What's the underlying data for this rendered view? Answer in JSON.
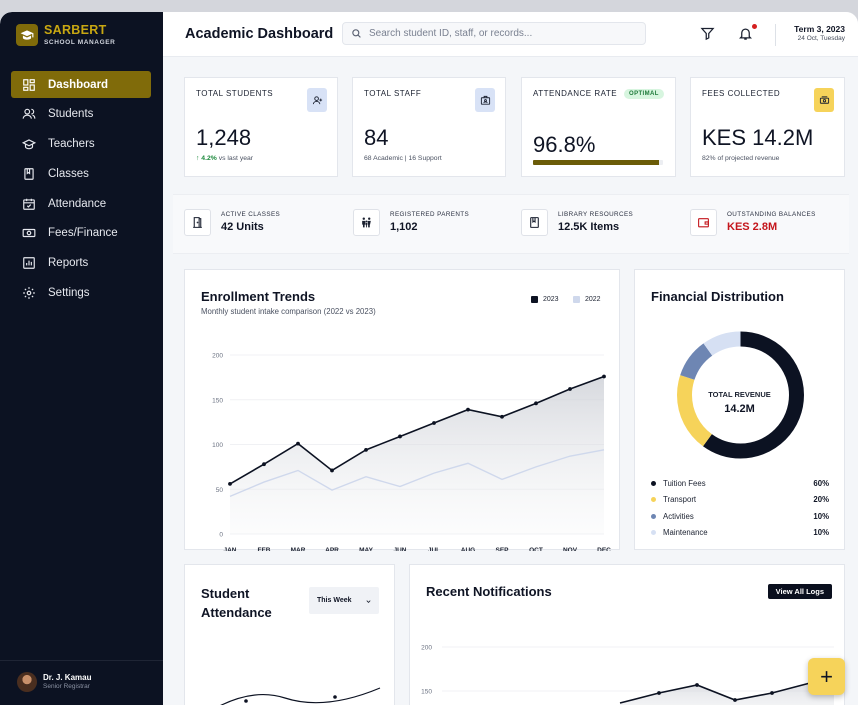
{
  "brand": {
    "name": "SARBERT",
    "subtitle": "SCHOOL MANAGER",
    "accent": "#806b0a"
  },
  "sidebar": {
    "items": [
      {
        "label": "Dashboard",
        "icon": "dashboard-icon",
        "active": true
      },
      {
        "label": "Students",
        "icon": "users-icon"
      },
      {
        "label": "Teachers",
        "icon": "graduation-cap-icon"
      },
      {
        "label": "Classes",
        "icon": "book-icon"
      },
      {
        "label": "Attendance",
        "icon": "calendar-check-icon"
      },
      {
        "label": "Fees/Finance",
        "icon": "money-icon"
      },
      {
        "label": "Reports",
        "icon": "bar-chart-icon"
      },
      {
        "label": "Settings",
        "icon": "gear-icon"
      }
    ],
    "user": {
      "name": "Dr. J. Kamau",
      "role": "Senior Registrar"
    }
  },
  "header": {
    "title": "Academic Dashboard",
    "search_placeholder": "Search student ID, staff, or records...",
    "term": "Term 3, 2023",
    "date": "24 Oct, Tuesday"
  },
  "stats": {
    "students": {
      "label": "TOTAL STUDENTS",
      "value": "1,248",
      "change": "4.2%",
      "change_suffix": "vs last year",
      "icon": "user-icon"
    },
    "staff": {
      "label": "TOTAL STAFF",
      "value": "84",
      "sub": "68 Academic | 16 Support",
      "icon": "id-badge-icon"
    },
    "attendance": {
      "label": "ATTENDANCE RATE",
      "badge": "OPTIMAL",
      "value": "96.8%",
      "fill": 0.968,
      "icon": "progress-bar"
    },
    "fees": {
      "label": "FEES COLLECTED",
      "value": "KES 14.2M",
      "sub": "82% of projected revenue",
      "icon": "cash-icon"
    }
  },
  "strip": {
    "classes": {
      "label": "ACTIVE CLASSES",
      "value": "42 Units",
      "icon": "door-icon"
    },
    "parents": {
      "label": "REGISTERED PARENTS",
      "value": "1,102",
      "icon": "family-icon"
    },
    "library": {
      "label": "LIBRARY RESOURCES",
      "value": "12.5K Items",
      "icon": "book-icon"
    },
    "balances": {
      "label": "OUTSTANDING BALANCES",
      "value": "KES 2.8M",
      "icon": "wallet-icon"
    }
  },
  "enrollment": {
    "title": "Enrollment Trends",
    "subtitle": "Monthly student intake comparison (2022 vs 2023)"
  },
  "financial": {
    "title": "Financial Distribution",
    "center_label": "TOTAL REVENUE",
    "center_value": "14.2M",
    "items": [
      {
        "label": "Tuition Fees",
        "pct": "60%",
        "value": 60,
        "color": "#0c1222"
      },
      {
        "label": "Transport",
        "pct": "20%",
        "value": 20,
        "color": "#f6d35a"
      },
      {
        "label": "Activities",
        "pct": "10%",
        "value": 10,
        "color": "#6e86b3"
      },
      {
        "label": "Maintenance",
        "pct": "10%",
        "value": 10,
        "color": "#d6e0f3"
      }
    ]
  },
  "attendance_card": {
    "title_line1": "Student",
    "title_line2": "Attendance",
    "period": "This Week"
  },
  "notifications": {
    "title": "Recent Notifications",
    "button": "View All Logs",
    "yticks": [
      "200",
      "150"
    ],
    "line": [
      42,
      52,
      60,
      45,
      52,
      62,
      70
    ]
  },
  "chart_data": [
    {
      "type": "area",
      "title": "Enrollment Trends",
      "subtitle": "Monthly student intake comparison (2022 vs 2023)",
      "categories": [
        "JAN",
        "FEB",
        "MAR",
        "APR",
        "MAY",
        "JUN",
        "JUL",
        "AUG",
        "SEP",
        "OCT",
        "NOV",
        "DEC"
      ],
      "series": [
        {
          "name": "2023",
          "color": "#0c1222",
          "values": [
            56,
            78,
            101,
            71,
            94,
            109,
            124,
            139,
            131,
            146,
            162,
            176
          ]
        },
        {
          "name": "2022",
          "color": "#cfd8ec",
          "values": [
            42,
            58,
            71,
            49,
            64,
            53,
            68,
            79,
            61,
            75,
            87,
            94
          ]
        }
      ],
      "yticks": [
        0,
        50,
        100,
        150,
        200
      ],
      "ylim": [
        0,
        200
      ],
      "grid": true,
      "legend": "top-right"
    },
    {
      "type": "pie",
      "title": "Financial Distribution",
      "categories": [
        "Tuition Fees",
        "Transport",
        "Activities",
        "Maintenance"
      ],
      "values": [
        60,
        20,
        10,
        10
      ]
    }
  ],
  "fab_label": "+"
}
